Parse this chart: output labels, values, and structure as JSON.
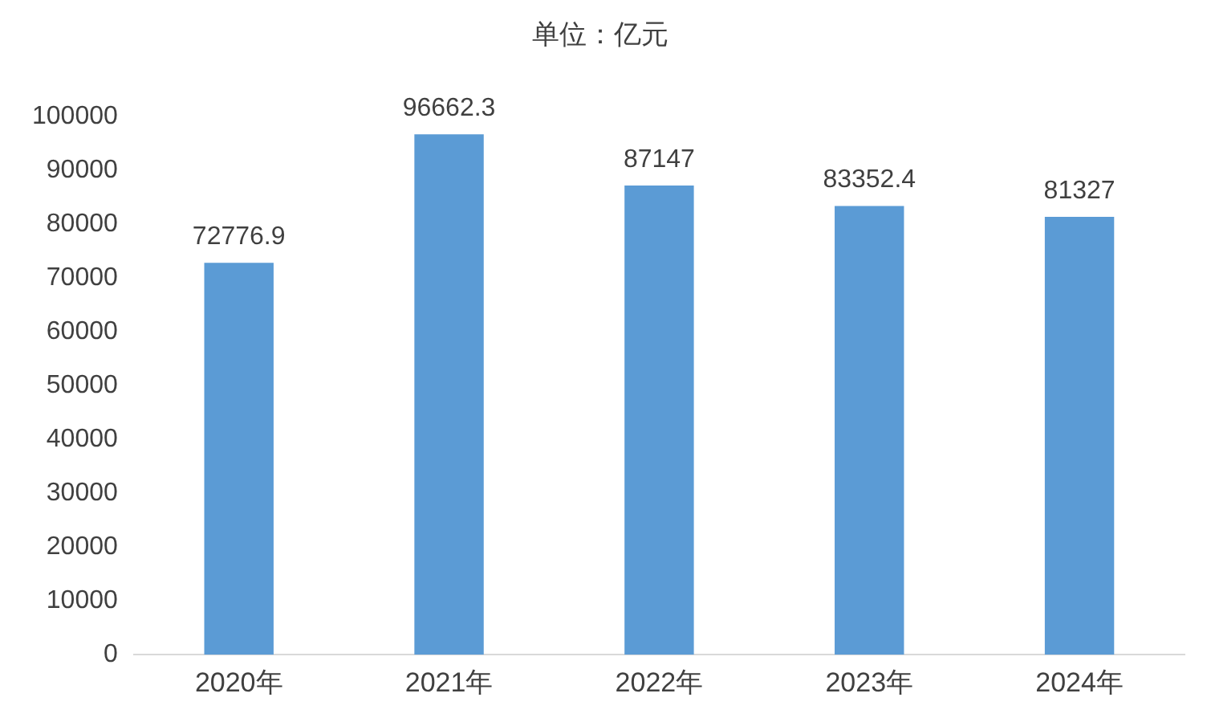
{
  "chart_data": {
    "type": "bar",
    "title": "单位：亿元",
    "categories": [
      "2020年",
      "2021年",
      "2022年",
      "2023年",
      "2024年"
    ],
    "values": [
      72776.9,
      96662.3,
      87147,
      83352.4,
      81327
    ],
    "color": "#5b9bd5",
    "ylim": [
      0,
      100000
    ],
    "yticks": [
      0,
      10000,
      20000,
      30000,
      40000,
      50000,
      60000,
      70000,
      80000,
      90000,
      100000
    ],
    "grid": false,
    "legend": false,
    "data_labels": true
  }
}
